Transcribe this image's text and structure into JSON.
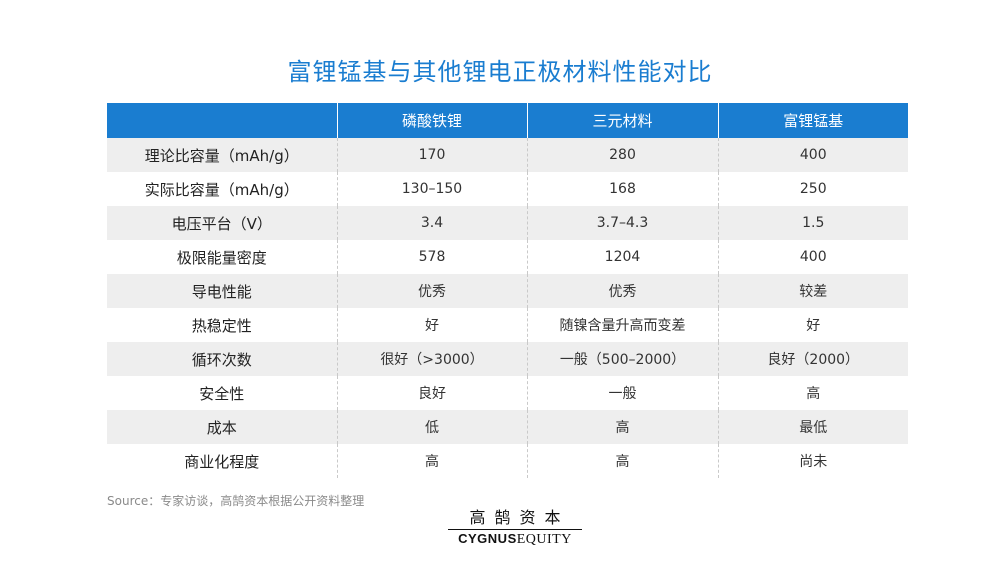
{
  "title": "富锂锰基与其他锂电正极材料性能对比",
  "table": {
    "headers": [
      "",
      "磷酸铁锂",
      "三元材料",
      "富锂锰基"
    ],
    "rows": [
      [
        "理论比容量（mAh/g）",
        "170",
        "280",
        "400"
      ],
      [
        "实际比容量（mAh/g）",
        "130–150",
        "168",
        "250"
      ],
      [
        "电压平台（V）",
        "3.4",
        "3.7–4.3",
        "1.5"
      ],
      [
        "极限能量密度",
        "578",
        "1204",
        "400"
      ],
      [
        "导电性能",
        "优秀",
        "优秀",
        "较差"
      ],
      [
        "热稳定性",
        "好",
        "随镍含量升高而变差",
        "好"
      ],
      [
        "循环次数",
        "很好（>3000）",
        "一般（500–2000）",
        "良好（2000）"
      ],
      [
        "安全性",
        "良好",
        "一般",
        "高"
      ],
      [
        "成本",
        "低",
        "高",
        "最低"
      ],
      [
        "商业化程度",
        "高",
        "高",
        "尚未"
      ]
    ]
  },
  "source": "Source：专家访谈，高鹄资本根据公开资料整理",
  "logo": {
    "cn": "高鹄资本",
    "en_bold": "CYGNUS",
    "en_regular": "EQUITY"
  },
  "colors": {
    "accent": "#1a7dd0",
    "row_shade": "#eeeeee",
    "source_text": "#8a8a8a"
  }
}
